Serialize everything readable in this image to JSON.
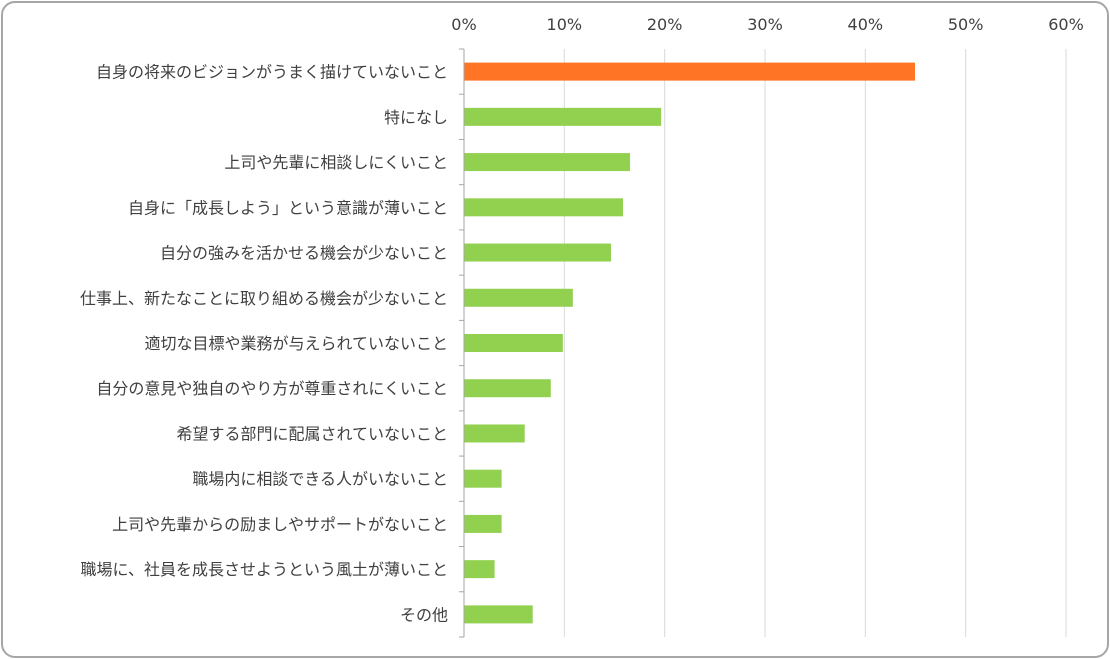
{
  "chart_data": {
    "type": "bar",
    "orientation": "horizontal",
    "title": "",
    "xlabel": "",
    "ylabel": "",
    "xlim": [
      0,
      60
    ],
    "tick_values": [
      0,
      10,
      20,
      30,
      40,
      50,
      60
    ],
    "tick_labels": [
      "0%",
      "10%",
      "20%",
      "30%",
      "40%",
      "50%",
      "60%"
    ],
    "grid": "vertical",
    "legend": "none",
    "colors": {
      "highlight": "#ff7425",
      "default": "#92d050",
      "grid": "#d9d9d9",
      "axis": "#a6a6a6",
      "text": "#404040",
      "frame": "#a6a6a6"
    },
    "categories": [
      "自身の将来のビジョンがうまく描けていないこと",
      "特になし",
      "上司や先輩に相談しにくいこと",
      "自身に「成長しよう」という意識が薄いこと",
      "自分の強みを活かせる機会が少ないこと",
      "仕事上、新たなことに取り組める機会が少ないこと",
      "適切な目標や業務が与えられていないこと",
      "自分の意見や独自のやり方が尊重されにくいこと",
      "希望する部門に配属されていないこと",
      "職場内に相談できる人がいないこと",
      "上司や先輩からの励ましやサポートがないこと",
      "職場に、社員を成長させようという風土が薄いこと",
      "その他"
    ],
    "values": [
      44.9,
      19.6,
      16.5,
      15.8,
      14.6,
      10.8,
      9.8,
      8.6,
      6.0,
      3.7,
      3.7,
      3.0,
      6.8
    ],
    "highlight_index": 0
  }
}
